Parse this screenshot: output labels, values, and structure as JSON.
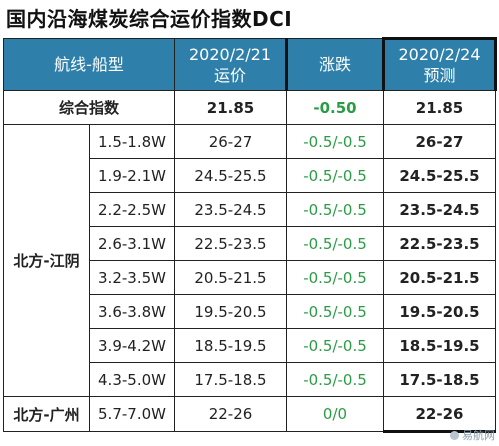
{
  "title": "国内沿海煤炭综合运价指数DCI",
  "headers": {
    "route": "航线-船型",
    "date1": "2020/2/21",
    "rate": "运价",
    "change": "涨跌",
    "date2": "2020/2/24",
    "forecast": "预测"
  },
  "summary": {
    "label": "综合指数",
    "rate": "21.85",
    "change": "-0.50",
    "forecast": "21.85"
  },
  "groups": [
    {
      "label": "北方-江阴",
      "rows": [
        {
          "size": "1.5-1.8W",
          "rate": "26-27",
          "change": "-0.5/-0.5",
          "forecast": "26-27"
        },
        {
          "size": "1.9-2.1W",
          "rate": "24.5-25.5",
          "change": "-0.5/-0.5",
          "forecast": "24.5-25.5"
        },
        {
          "size": "2.2-2.5W",
          "rate": "23.5-24.5",
          "change": "-0.5/-0.5",
          "forecast": "23.5-24.5"
        },
        {
          "size": "2.6-3.1W",
          "rate": "22.5-23.5",
          "change": "-0.5/-0.5",
          "forecast": "22.5-23.5"
        },
        {
          "size": "3.2-3.5W",
          "rate": "20.5-21.5",
          "change": "-0.5/-0.5",
          "forecast": "20.5-21.5"
        },
        {
          "size": "3.6-3.8W",
          "rate": "19.5-20.5",
          "change": "-0.5/-0.5",
          "forecast": "19.5-20.5"
        },
        {
          "size": "3.9-4.2W",
          "rate": "18.5-19.5",
          "change": "-0.5/-0.5",
          "forecast": "18.5-19.5"
        },
        {
          "size": "4.3-5.0W",
          "rate": "17.5-18.5",
          "change": "-0.5/-0.5",
          "forecast": "17.5-18.5"
        }
      ]
    },
    {
      "label": "北方-广州",
      "rows": [
        {
          "size": "5.7-7.0W",
          "rate": "22-26",
          "change": "0/0",
          "forecast": "22-26"
        }
      ]
    }
  ],
  "watermark": "易航网",
  "colors": {
    "header_bg": "#2e80ab",
    "change_text": "#2b9c45"
  }
}
